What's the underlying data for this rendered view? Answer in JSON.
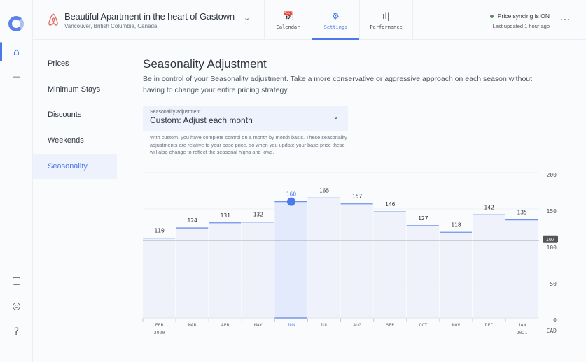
{
  "header": {
    "title": "Beautiful Apartment in the heart of Gastown",
    "location": "Vancouver, British Columbia, Canada",
    "tabs": [
      {
        "label": "Calendar",
        "icon": "calendar-icon"
      },
      {
        "label": "Settings",
        "icon": "gear-dollar-icon"
      },
      {
        "label": "Performance",
        "icon": "bar-chart-icon"
      }
    ],
    "sync_status": "Price syncing is ON",
    "last_updated": "Last updated 1 hour ago",
    "colors": {
      "accent": "#4d78e8",
      "sync": "#5a8a5a"
    }
  },
  "nav": {
    "items": [
      "Prices",
      "Minimum Stays",
      "Discounts",
      "Weekends",
      "Seasonality"
    ],
    "selected": "Seasonality"
  },
  "main": {
    "title": "Seasonality Adjustment",
    "description": "Be in control of your Seasonality adjustment. Take a more conservative or aggressive approach on each season without having to change your entire pricing strategy.",
    "select_label": "Seasonality adjustment",
    "select_value": "Custom: Adjust each month",
    "help": "With custom, you have complete control on a month by month basis. These seasonality adjustments are relative to your base price, so when you update your base price these will also change to reflect the seasonal highs and lows."
  },
  "chart_data": {
    "type": "bar",
    "categories": [
      "FEB",
      "MAR",
      "APR",
      "MAY",
      "JUN",
      "JUL",
      "AUG",
      "SEP",
      "OCT",
      "NOV",
      "DEC",
      "JAN"
    ],
    "year_labels": {
      "FEB": "2020",
      "JAN": "2021"
    },
    "values": [
      110,
      124,
      131,
      132,
      160,
      165,
      157,
      146,
      127,
      118,
      142,
      135
    ],
    "selected": "JUN",
    "base_price": 107,
    "base_price_label": "107",
    "yticks": [
      "200",
      "150",
      "100",
      "50",
      "0"
    ],
    "ytick_values": [
      200,
      150,
      100,
      50,
      0
    ],
    "ylim": [
      0,
      200
    ],
    "unit": "CAD"
  }
}
